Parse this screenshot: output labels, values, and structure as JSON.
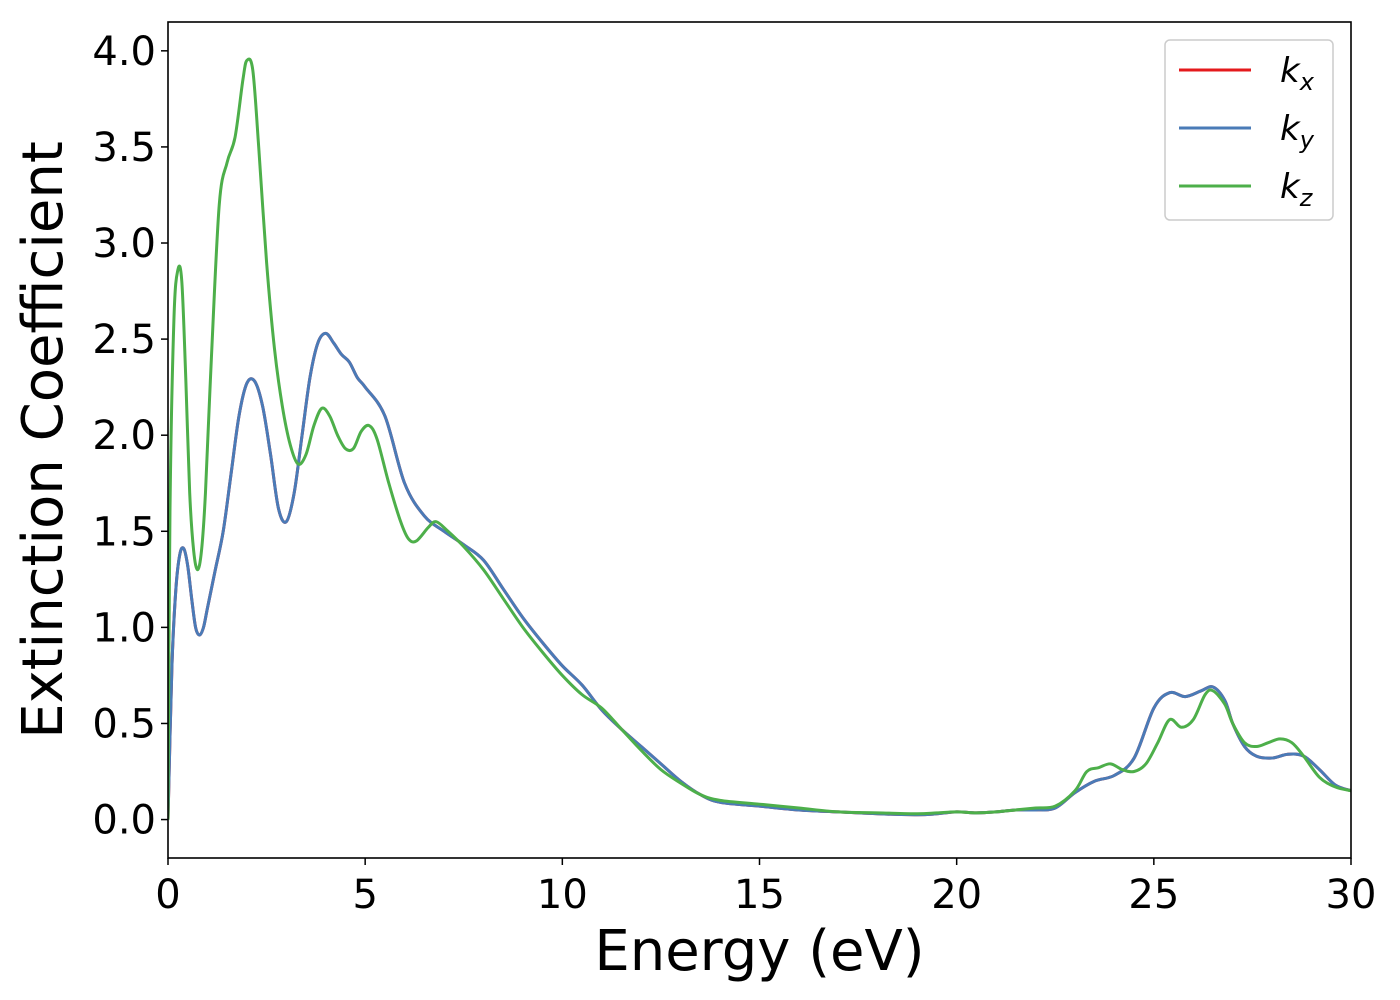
{
  "chart_data": {
    "type": "line",
    "title": "",
    "xlabel": "Energy (eV)",
    "ylabel": "Extinction Coefficient",
    "xlim": [
      0,
      30
    ],
    "ylim": [
      -0.2,
      4.15
    ],
    "xticks": [
      0,
      5,
      10,
      15,
      20,
      25,
      30
    ],
    "xtick_labels": [
      "0",
      "5",
      "10",
      "15",
      "20",
      "25",
      "30"
    ],
    "yticks": [
      0.0,
      0.5,
      1.0,
      1.5,
      2.0,
      2.5,
      3.0,
      3.5,
      4.0
    ],
    "ytick_labels": [
      "0.0",
      "0.5",
      "1.0",
      "1.5",
      "2.0",
      "2.5",
      "3.0",
      "3.5",
      "4.0"
    ],
    "grid": false,
    "legend_position": "top-right",
    "series": [
      {
        "name": "k",
        "subscript": "x",
        "color": "#e41a1c",
        "x": [
          0,
          0.1,
          0.2,
          0.3,
          0.4,
          0.5,
          0.6,
          0.7,
          0.8,
          0.9,
          1.0,
          1.2,
          1.4,
          1.6,
          1.8,
          2.0,
          2.2,
          2.4,
          2.6,
          2.8,
          3.0,
          3.2,
          3.4,
          3.6,
          3.8,
          4.0,
          4.2,
          4.4,
          4.6,
          4.8,
          5.0,
          5.5,
          6.0,
          6.5,
          7.0,
          7.5,
          8.0,
          8.5,
          9.0,
          9.5,
          10.0,
          10.5,
          11.0,
          11.5,
          12.0,
          12.5,
          13.0,
          13.5,
          14.0,
          15.0,
          16.0,
          17.0,
          18.0,
          19.0,
          19.5,
          20.0,
          20.5,
          21.0,
          21.5,
          22.0,
          22.5,
          23.0,
          23.5,
          24.0,
          24.5,
          25.0,
          25.4,
          25.8,
          26.2,
          26.5,
          26.8,
          27.0,
          27.3,
          27.6,
          28.0,
          28.4,
          28.8,
          29.2,
          29.6,
          30.0
        ],
        "values": [
          0.0,
          0.8,
          1.2,
          1.38,
          1.41,
          1.32,
          1.15,
          1.0,
          0.96,
          1.0,
          1.1,
          1.3,
          1.5,
          1.8,
          2.1,
          2.27,
          2.28,
          2.15,
          1.9,
          1.62,
          1.55,
          1.7,
          2.0,
          2.3,
          2.48,
          2.53,
          2.48,
          2.42,
          2.38,
          2.3,
          2.25,
          2.1,
          1.75,
          1.58,
          1.5,
          1.43,
          1.35,
          1.2,
          1.05,
          0.92,
          0.8,
          0.7,
          0.57,
          0.47,
          0.38,
          0.29,
          0.2,
          0.13,
          0.09,
          0.07,
          0.05,
          0.04,
          0.03,
          0.025,
          0.03,
          0.04,
          0.035,
          0.04,
          0.05,
          0.05,
          0.06,
          0.14,
          0.2,
          0.23,
          0.32,
          0.58,
          0.66,
          0.64,
          0.67,
          0.69,
          0.62,
          0.5,
          0.38,
          0.33,
          0.32,
          0.34,
          0.33,
          0.26,
          0.18,
          0.15
        ]
      },
      {
        "name": "k",
        "subscript": "y",
        "color": "#4a7bb7",
        "x": [
          0,
          0.1,
          0.2,
          0.3,
          0.4,
          0.5,
          0.6,
          0.7,
          0.8,
          0.9,
          1.0,
          1.2,
          1.4,
          1.6,
          1.8,
          2.0,
          2.2,
          2.4,
          2.6,
          2.8,
          3.0,
          3.2,
          3.4,
          3.6,
          3.8,
          4.0,
          4.2,
          4.4,
          4.6,
          4.8,
          5.0,
          5.5,
          6.0,
          6.5,
          7.0,
          7.5,
          8.0,
          8.5,
          9.0,
          9.5,
          10.0,
          10.5,
          11.0,
          11.5,
          12.0,
          12.5,
          13.0,
          13.5,
          14.0,
          15.0,
          16.0,
          17.0,
          18.0,
          19.0,
          19.5,
          20.0,
          20.5,
          21.0,
          21.5,
          22.0,
          22.5,
          23.0,
          23.5,
          24.0,
          24.5,
          25.0,
          25.4,
          25.8,
          26.2,
          26.5,
          26.8,
          27.0,
          27.3,
          27.6,
          28.0,
          28.4,
          28.8,
          29.2,
          29.6,
          30.0
        ],
        "values": [
          0.0,
          0.8,
          1.2,
          1.38,
          1.41,
          1.32,
          1.15,
          1.0,
          0.96,
          1.0,
          1.1,
          1.3,
          1.5,
          1.8,
          2.1,
          2.27,
          2.28,
          2.15,
          1.9,
          1.62,
          1.55,
          1.7,
          2.0,
          2.3,
          2.48,
          2.53,
          2.48,
          2.42,
          2.38,
          2.3,
          2.25,
          2.1,
          1.75,
          1.58,
          1.5,
          1.43,
          1.35,
          1.2,
          1.05,
          0.92,
          0.8,
          0.7,
          0.57,
          0.47,
          0.38,
          0.29,
          0.2,
          0.13,
          0.09,
          0.07,
          0.05,
          0.04,
          0.03,
          0.025,
          0.03,
          0.04,
          0.035,
          0.04,
          0.05,
          0.05,
          0.06,
          0.14,
          0.2,
          0.23,
          0.32,
          0.58,
          0.66,
          0.64,
          0.67,
          0.69,
          0.62,
          0.5,
          0.38,
          0.33,
          0.32,
          0.34,
          0.33,
          0.26,
          0.18,
          0.15
        ]
      },
      {
        "name": "k",
        "subscript": "z",
        "color": "#4daf4a",
        "x": [
          0,
          0.05,
          0.15,
          0.25,
          0.35,
          0.45,
          0.55,
          0.65,
          0.75,
          0.85,
          0.95,
          1.1,
          1.3,
          1.5,
          1.7,
          1.9,
          2.0,
          2.15,
          2.3,
          2.5,
          2.7,
          2.9,
          3.1,
          3.3,
          3.5,
          3.7,
          3.9,
          4.1,
          4.3,
          4.5,
          4.7,
          4.9,
          5.1,
          5.3,
          5.6,
          5.9,
          6.1,
          6.3,
          6.6,
          6.8,
          7.1,
          7.5,
          8.0,
          8.5,
          9.0,
          9.5,
          10.0,
          10.5,
          11.0,
          11.5,
          12.0,
          12.5,
          13.0,
          13.5,
          14.0,
          15.0,
          16.0,
          17.0,
          18.0,
          19.0,
          19.5,
          20.0,
          20.5,
          21.0,
          21.5,
          22.0,
          22.5,
          23.0,
          23.3,
          23.6,
          23.9,
          24.2,
          24.5,
          24.8,
          25.1,
          25.4,
          25.7,
          26.0,
          26.3,
          26.5,
          26.8,
          27.0,
          27.3,
          27.6,
          27.9,
          28.2,
          28.5,
          28.8,
          29.2,
          29.6,
          30.0
        ],
        "values": [
          0.0,
          1.6,
          2.6,
          2.86,
          2.8,
          2.3,
          1.7,
          1.4,
          1.3,
          1.4,
          1.7,
          2.4,
          3.2,
          3.42,
          3.55,
          3.85,
          3.95,
          3.9,
          3.5,
          2.9,
          2.45,
          2.15,
          1.95,
          1.85,
          1.9,
          2.05,
          2.14,
          2.1,
          2.0,
          1.93,
          1.93,
          2.02,
          2.05,
          1.98,
          1.75,
          1.55,
          1.46,
          1.45,
          1.52,
          1.55,
          1.5,
          1.42,
          1.3,
          1.15,
          1.0,
          0.87,
          0.75,
          0.65,
          0.58,
          0.47,
          0.36,
          0.26,
          0.19,
          0.13,
          0.1,
          0.08,
          0.06,
          0.04,
          0.035,
          0.03,
          0.035,
          0.04,
          0.035,
          0.04,
          0.05,
          0.06,
          0.07,
          0.15,
          0.25,
          0.27,
          0.29,
          0.26,
          0.25,
          0.29,
          0.4,
          0.52,
          0.48,
          0.52,
          0.65,
          0.67,
          0.6,
          0.5,
          0.4,
          0.38,
          0.4,
          0.42,
          0.4,
          0.33,
          0.22,
          0.17,
          0.15
        ]
      }
    ]
  }
}
